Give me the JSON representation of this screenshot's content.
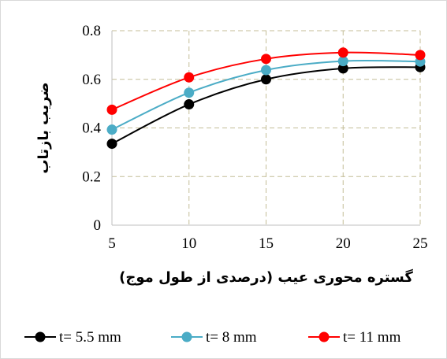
{
  "chart_data": {
    "type": "line",
    "title": "",
    "xlabel": "گستره محوری عیب (درصدی از طول موج)",
    "ylabel": "ضریب بازتاب",
    "x": [
      5,
      10,
      15,
      20,
      25
    ],
    "x_ticks": [
      "5",
      "10",
      "15",
      "20",
      "25"
    ],
    "y_ticks": [
      "0",
      "0.2",
      "0.4",
      "0.6",
      "0.8"
    ],
    "xlim": [
      5,
      25
    ],
    "ylim": [
      0,
      0.8
    ],
    "grid": true,
    "smooth": true,
    "legend_position": "bottom",
    "series": [
      {
        "name": "t= 5.5 mm",
        "color": "#000000",
        "values": [
          0.335,
          0.497,
          0.6,
          0.645,
          0.65
        ]
      },
      {
        "name": "t= 8 mm",
        "color": "#4bacc6",
        "values": [
          0.393,
          0.545,
          0.638,
          0.675,
          0.673
        ]
      },
      {
        "name": "t= 11 mm",
        "color": "#ff0000",
        "values": [
          0.475,
          0.608,
          0.684,
          0.71,
          0.7
        ]
      }
    ]
  }
}
